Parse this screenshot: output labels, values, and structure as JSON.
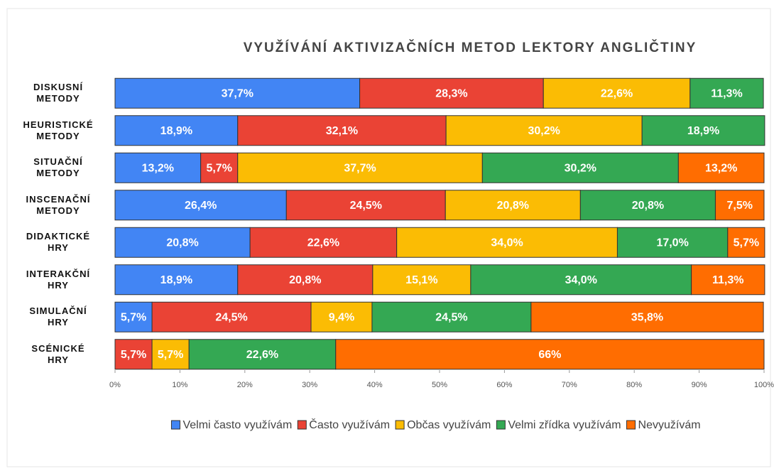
{
  "chart_data": {
    "type": "stacked_barh",
    "title": "VYUŽÍVÁNÍ AKTIVIZAČNÍCH METOD LEKTORY ANGLIČTINY",
    "categories": [
      "DISKUSNÍ\nMETODY",
      "HEURISTICKÉ\nMETODY",
      "SITUAČNÍ\nMETODY",
      "INSCENAČNÍ\nMETODY",
      "DIDAKTICKÉ\nHRY",
      "INTERAKČNÍ\nHRY",
      "SIMULAČNÍ\nHRY",
      "SCÉNICKÉ\nHRY"
    ],
    "series": [
      {
        "name": "Velmi často využívám",
        "color": "#4285f4",
        "values": [
          37.7,
          18.9,
          13.2,
          26.4,
          20.8,
          18.9,
          5.7,
          null
        ],
        "value_labels": [
          "37,7%",
          "18,9%",
          "13,2%",
          "26,4%",
          "20,8%",
          "18,9%",
          "5,7%",
          null
        ]
      },
      {
        "name": "Často využívám",
        "color": "#ea4335",
        "values": [
          28.3,
          32.1,
          5.7,
          24.5,
          22.6,
          20.8,
          24.5,
          5.7
        ],
        "value_labels": [
          "28,3%",
          "32,1%",
          "5,7%",
          "24,5%",
          "22,6%",
          "20,8%",
          "24,5%",
          "5,7%"
        ]
      },
      {
        "name": "Občas využívám",
        "color": "#fbbc04",
        "values": [
          22.6,
          30.2,
          37.7,
          20.8,
          34.0,
          15.1,
          9.4,
          5.7
        ],
        "value_labels": [
          "22,6%",
          "30,2%",
          "37,7%",
          "20,8%",
          "34,0%",
          "15,1%",
          "9,4%",
          "5,7%"
        ]
      },
      {
        "name": "Velmi zřídka využívám",
        "color": "#34a853",
        "values": [
          11.3,
          18.9,
          30.2,
          20.8,
          17.0,
          34.0,
          24.5,
          22.6
        ],
        "value_labels": [
          "11,3%",
          "18,9%",
          "30,2%",
          "20,8%",
          "17,0%",
          "34,0%",
          "24,5%",
          "22,6%"
        ]
      },
      {
        "name": "Nevyužívám",
        "color": "#ff6d01",
        "values": [
          null,
          null,
          13.2,
          7.5,
          5.7,
          11.3,
          35.8,
          66
        ],
        "value_labels": [
          null,
          null,
          "13,2%",
          "7,5%",
          "5,7%",
          "11,3%",
          "35,8%",
          "66%"
        ]
      }
    ],
    "xlim": [
      0,
      100
    ],
    "xticks": [
      {
        "value": 0,
        "label": "0%"
      },
      {
        "value": 10,
        "label": "10%"
      },
      {
        "value": 20,
        "label": "20%"
      },
      {
        "value": 30,
        "label": "30%"
      },
      {
        "value": 40,
        "label": "40%"
      },
      {
        "value": 50,
        "label": "50%"
      },
      {
        "value": 60,
        "label": "60%"
      },
      {
        "value": 70,
        "label": "70%"
      },
      {
        "value": 80,
        "label": "80%"
      },
      {
        "value": 90,
        "label": "90%"
      },
      {
        "value": 100,
        "label": "100%"
      }
    ],
    "legend": "bottom"
  }
}
